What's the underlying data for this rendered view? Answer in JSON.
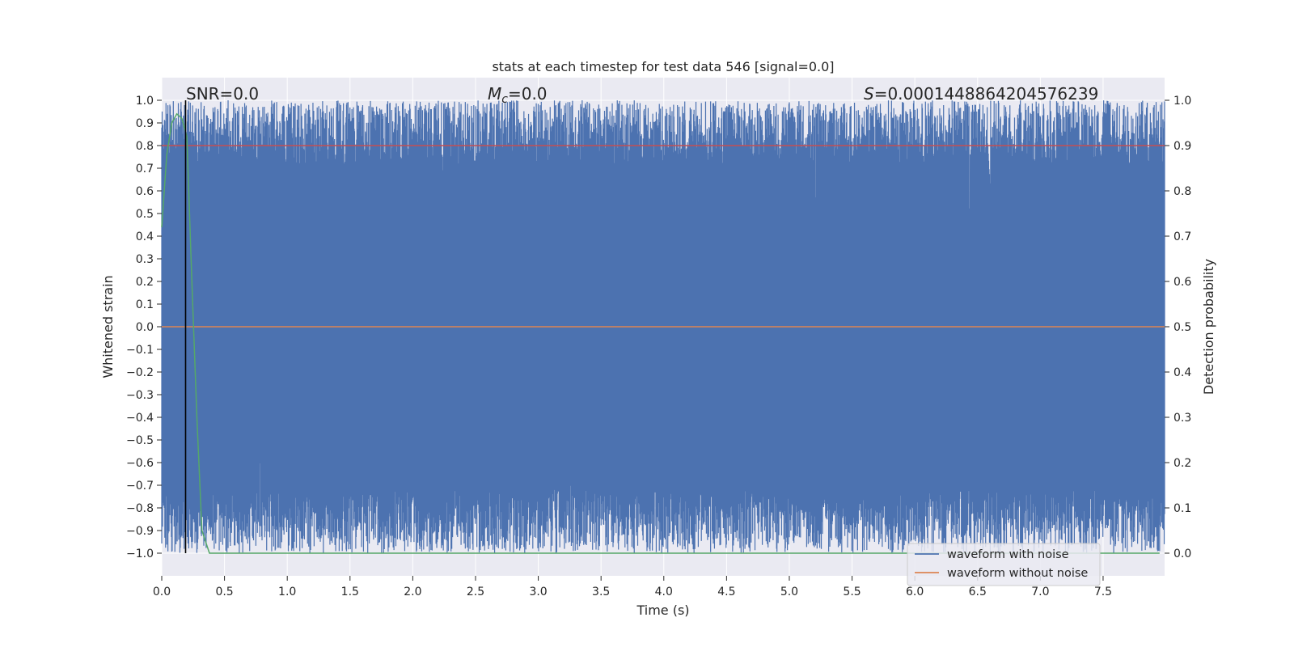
{
  "chart_data": {
    "type": "line",
    "title": "stats at each timestep for test data 546 [signal=0.0]",
    "xlabel": "Time (s)",
    "ylabel": "Whitened strain",
    "y2label": "Detection probability",
    "xlim": [
      0.0,
      7.99
    ],
    "ylim": [
      -1.1,
      1.1
    ],
    "y2lim": [
      -0.05,
      1.05
    ],
    "xticks": [
      0.0,
      0.5,
      1.0,
      1.5,
      2.0,
      2.5,
      3.0,
      3.5,
      4.0,
      4.5,
      5.0,
      5.5,
      6.0,
      6.5,
      7.0,
      7.5
    ],
    "xtick_labels": [
      "0.0",
      "0.5",
      "1.0",
      "1.5",
      "2.0",
      "2.5",
      "3.0",
      "3.5",
      "4.0",
      "4.5",
      "5.0",
      "5.5",
      "6.0",
      "6.5",
      "7.0",
      "7.5"
    ],
    "yticks": [
      1.0,
      0.9,
      0.8,
      0.7,
      0.6,
      0.5,
      0.4,
      0.3,
      0.2,
      0.1,
      0.0,
      -0.1,
      -0.2,
      -0.3,
      -0.4,
      -0.5,
      -0.6,
      -0.7,
      -0.8,
      -0.9,
      -1.0
    ],
    "ytick_labels": [
      "1.0",
      "0.9",
      "0.8",
      "0.7",
      "0.6",
      "0.5",
      "0.4",
      "0.3",
      "0.2",
      "0.1",
      "0.0",
      "−0.1",
      "−0.2",
      "−0.3",
      "−0.4",
      "−0.5",
      "−0.6",
      "−0.7",
      "−0.8",
      "−0.9",
      "−1.0"
    ],
    "y2ticks": [
      1.0,
      0.9,
      0.8,
      0.7,
      0.6,
      0.5,
      0.4,
      0.3,
      0.2,
      0.1,
      0.0
    ],
    "y2tick_labels": [
      "1.0",
      "0.9",
      "0.8",
      "0.7",
      "0.6",
      "0.5",
      "0.4",
      "0.3",
      "0.2",
      "0.1",
      "0.0"
    ],
    "grid": true,
    "legend_position": "lower right",
    "series": [
      {
        "name": "waveform with noise",
        "color": "#4c72b0",
        "axis": "left",
        "description_range": [
          -1.0,
          1.0
        ],
        "approx_envelope": {
          "x": [
            0.0,
            0.5,
            1.0,
            1.5,
            2.0,
            2.5,
            3.0,
            3.5,
            4.0,
            4.5,
            5.0,
            5.5,
            6.0,
            6.5,
            7.0,
            7.5,
            7.99
          ],
          "upper_min": [
            0.6,
            0.6,
            0.55,
            0.55,
            0.6,
            0.4,
            0.45,
            0.5,
            0.5,
            0.45,
            0.5,
            0.5,
            0.35,
            0.45,
            0.45,
            0.4,
            0.6
          ],
          "lower_max": [
            -0.6,
            -0.6,
            -0.55,
            -0.6,
            -0.5,
            -0.5,
            -0.6,
            -0.4,
            -0.55,
            -0.55,
            -0.3,
            -0.55,
            -0.2,
            -0.55,
            -0.6,
            -0.5,
            -0.6
          ]
        }
      },
      {
        "name": "waveform without noise",
        "color": "#dd8452",
        "axis": "left",
        "x": [
          0.0,
          7.99
        ],
        "values": [
          0.0,
          0.0
        ]
      },
      {
        "name": "",
        "color": "#c44e52",
        "axis": "right",
        "x": [
          0.0,
          7.99
        ],
        "values": [
          0.9,
          0.9
        ]
      },
      {
        "name": "",
        "color": "#55a868",
        "axis": "right",
        "x": [
          0.0,
          0.04,
          0.08,
          0.12,
          0.16,
          0.2,
          0.24,
          0.28,
          0.32,
          0.38,
          0.5,
          1.0,
          2.0,
          3.0,
          4.0,
          5.0,
          6.0,
          7.0,
          7.95
        ],
        "values": [
          0.72,
          0.88,
          0.95,
          0.97,
          0.96,
          0.92,
          0.6,
          0.3,
          0.05,
          0.0,
          0.0,
          0.0,
          0.0,
          0.0,
          0.0,
          0.0,
          0.0,
          0.0,
          0.0
        ]
      }
    ],
    "vline": {
      "x": 0.19,
      "color": "#000000"
    },
    "annotations": {
      "snr": "SNR=0.0",
      "mc_symbol": "M",
      "mc_sub": "c",
      "mc_value": "=0.0",
      "s_symbol": "S",
      "s_value": "=0.0001448864204576239"
    }
  }
}
